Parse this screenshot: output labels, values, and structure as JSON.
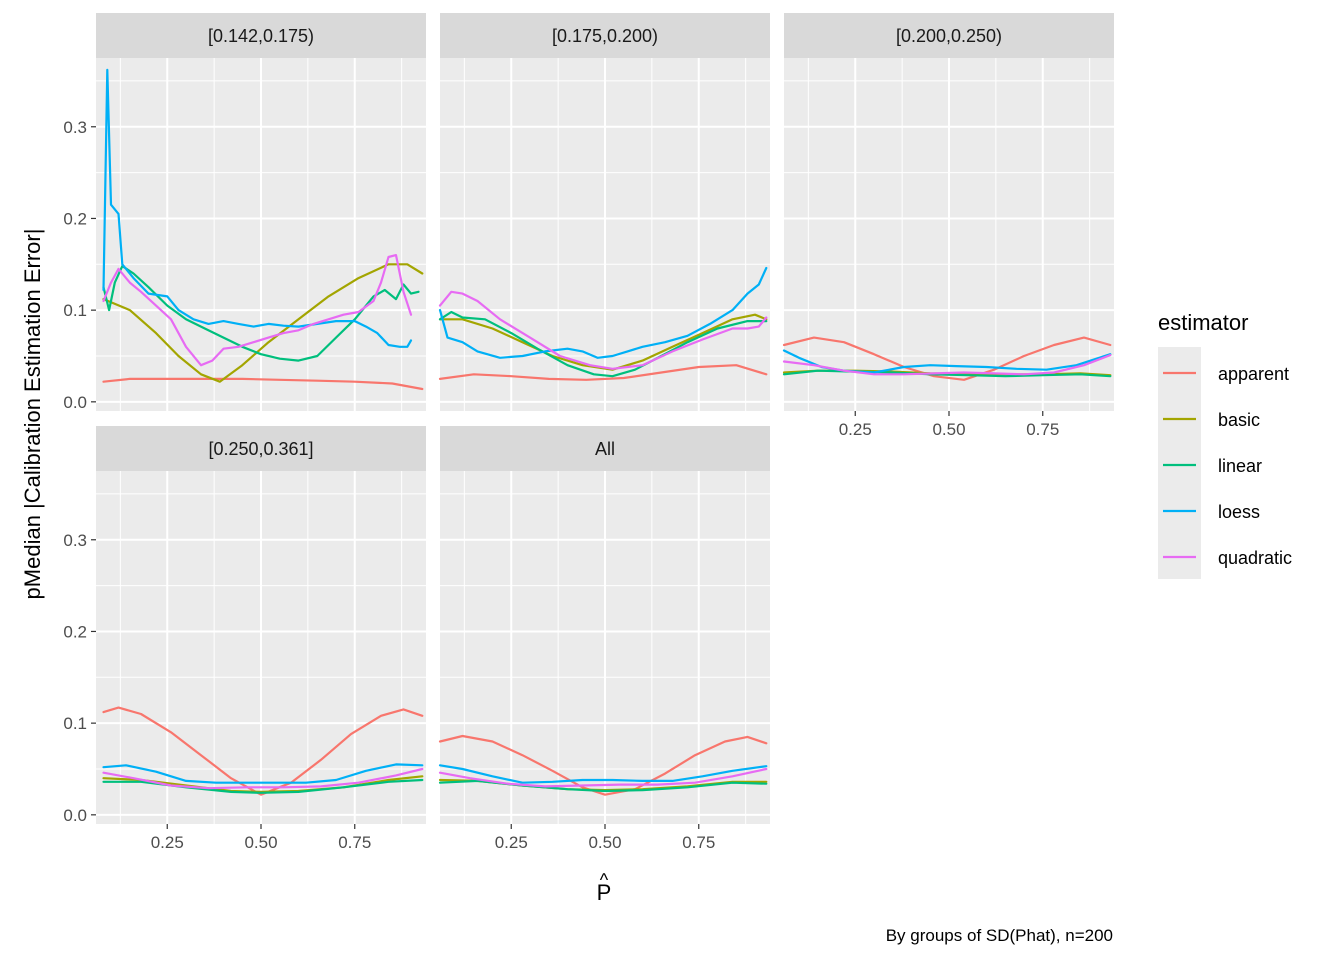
{
  "chart_data": {
    "type": "line",
    "ylabel": "pMedian |Calibration Estimation Error|",
    "xlabel": "P̂",
    "xlabel_base": "P",
    "xlabel_accent": "^",
    "caption": "By groups of SD(Phat), n=200",
    "xlim": [
      0.06,
      0.94
    ],
    "ylim": [
      -0.01,
      0.375
    ],
    "x_ticks": [
      0.25,
      0.5,
      0.75
    ],
    "x_tick_labels": [
      "0.25",
      "0.50",
      "0.75"
    ],
    "y_ticks": [
      0.0,
      0.1,
      0.2,
      0.3
    ],
    "y_tick_labels": [
      "0.0",
      "0.1",
      "0.2",
      "0.3"
    ],
    "grid": true,
    "legend": {
      "title": "estimator",
      "placement": "right",
      "entries": [
        "apparent",
        "basic",
        "linear",
        "loess",
        "quadratic"
      ]
    },
    "colors": {
      "apparent": "#F8766D",
      "basic": "#A3A500",
      "linear": "#00BF7D",
      "loess": "#00B0F6",
      "quadratic": "#E76BF3"
    },
    "panels": [
      {
        "label": "[0.142,0.175)",
        "series": [
          {
            "name": "apparent",
            "x": [
              0.08,
              0.15,
              0.25,
              0.35,
              0.45,
              0.55,
              0.65,
              0.75,
              0.85,
              0.93
            ],
            "y": [
              0.022,
              0.025,
              0.025,
              0.025,
              0.025,
              0.024,
              0.023,
              0.022,
              0.02,
              0.014
            ]
          },
          {
            "name": "basic",
            "x": [
              0.08,
              0.15,
              0.22,
              0.28,
              0.34,
              0.39,
              0.45,
              0.52,
              0.6,
              0.68,
              0.76,
              0.84,
              0.89,
              0.93
            ],
            "y": [
              0.112,
              0.1,
              0.075,
              0.05,
              0.03,
              0.022,
              0.04,
              0.065,
              0.09,
              0.115,
              0.135,
              0.15,
              0.15,
              0.14
            ]
          },
          {
            "name": "linear",
            "x": [
              0.08,
              0.095,
              0.11,
              0.13,
              0.16,
              0.2,
              0.25,
              0.3,
              0.35,
              0.4,
              0.45,
              0.5,
              0.55,
              0.6,
              0.65,
              0.7,
              0.75,
              0.8,
              0.83,
              0.86,
              0.88,
              0.9,
              0.92
            ],
            "y": [
              0.125,
              0.1,
              0.13,
              0.148,
              0.14,
              0.125,
              0.105,
              0.09,
              0.08,
              0.07,
              0.06,
              0.052,
              0.047,
              0.045,
              0.05,
              0.07,
              0.09,
              0.115,
              0.122,
              0.112,
              0.128,
              0.118,
              0.12
            ]
          },
          {
            "name": "loess",
            "x": [
              0.08,
              0.09,
              0.1,
              0.12,
              0.13,
              0.16,
              0.2,
              0.25,
              0.28,
              0.32,
              0.36,
              0.4,
              0.44,
              0.48,
              0.52,
              0.56,
              0.6,
              0.65,
              0.7,
              0.75,
              0.78,
              0.81,
              0.84,
              0.87,
              0.89,
              0.9
            ],
            "y": [
              0.122,
              0.362,
              0.215,
              0.205,
              0.15,
              0.135,
              0.118,
              0.115,
              0.1,
              0.09,
              0.085,
              0.088,
              0.085,
              0.082,
              0.085,
              0.083,
              0.082,
              0.085,
              0.088,
              0.088,
              0.082,
              0.075,
              0.062,
              0.06,
              0.06,
              0.067
            ]
          },
          {
            "name": "quadratic",
            "x": [
              0.08,
              0.1,
              0.12,
              0.15,
              0.18,
              0.22,
              0.26,
              0.3,
              0.34,
              0.37,
              0.4,
              0.44,
              0.48,
              0.52,
              0.56,
              0.6,
              0.64,
              0.68,
              0.72,
              0.76,
              0.8,
              0.82,
              0.84,
              0.86,
              0.88,
              0.9
            ],
            "y": [
              0.11,
              0.13,
              0.145,
              0.13,
              0.12,
              0.105,
              0.09,
              0.06,
              0.04,
              0.045,
              0.058,
              0.06,
              0.065,
              0.07,
              0.075,
              0.078,
              0.085,
              0.09,
              0.095,
              0.098,
              0.11,
              0.13,
              0.158,
              0.16,
              0.12,
              0.095
            ]
          }
        ]
      },
      {
        "label": "[0.175,0.200)",
        "series": [
          {
            "name": "apparent",
            "x": [
              0.06,
              0.15,
              0.25,
              0.35,
              0.45,
              0.55,
              0.65,
              0.75,
              0.85,
              0.93
            ],
            "y": [
              0.025,
              0.03,
              0.028,
              0.025,
              0.024,
              0.026,
              0.032,
              0.038,
              0.04,
              0.03
            ]
          },
          {
            "name": "basic",
            "x": [
              0.06,
              0.12,
              0.2,
              0.28,
              0.36,
              0.44,
              0.52,
              0.6,
              0.68,
              0.76,
              0.84,
              0.9,
              0.93
            ],
            "y": [
              0.09,
              0.09,
              0.08,
              0.065,
              0.05,
              0.04,
              0.035,
              0.045,
              0.06,
              0.075,
              0.09,
              0.095,
              0.09
            ]
          },
          {
            "name": "linear",
            "x": [
              0.06,
              0.09,
              0.12,
              0.18,
              0.25,
              0.32,
              0.4,
              0.47,
              0.52,
              0.58,
              0.65,
              0.72,
              0.8,
              0.88,
              0.93
            ],
            "y": [
              0.09,
              0.098,
              0.092,
              0.09,
              0.075,
              0.058,
              0.04,
              0.03,
              0.028,
              0.035,
              0.05,
              0.065,
              0.08,
              0.088,
              0.088
            ]
          },
          {
            "name": "loess",
            "x": [
              0.06,
              0.08,
              0.12,
              0.16,
              0.22,
              0.28,
              0.34,
              0.4,
              0.44,
              0.48,
              0.52,
              0.56,
              0.6,
              0.66,
              0.72,
              0.78,
              0.84,
              0.88,
              0.91,
              0.93
            ],
            "y": [
              0.1,
              0.07,
              0.065,
              0.055,
              0.048,
              0.05,
              0.055,
              0.058,
              0.055,
              0.048,
              0.05,
              0.055,
              0.06,
              0.065,
              0.072,
              0.085,
              0.1,
              0.118,
              0.128,
              0.146
            ]
          },
          {
            "name": "quadratic",
            "x": [
              0.06,
              0.09,
              0.12,
              0.16,
              0.22,
              0.3,
              0.38,
              0.46,
              0.52,
              0.6,
              0.68,
              0.76,
              0.84,
              0.88,
              0.91,
              0.93
            ],
            "y": [
              0.105,
              0.12,
              0.118,
              0.11,
              0.09,
              0.07,
              0.05,
              0.04,
              0.036,
              0.04,
              0.055,
              0.068,
              0.08,
              0.08,
              0.082,
              0.092
            ]
          }
        ]
      },
      {
        "label": "[0.200,0.250)",
        "series": [
          {
            "name": "apparent",
            "x": [
              0.06,
              0.14,
              0.22,
              0.3,
              0.38,
              0.46,
              0.54,
              0.62,
              0.7,
              0.78,
              0.86,
              0.93
            ],
            "y": [
              0.062,
              0.07,
              0.065,
              0.052,
              0.038,
              0.028,
              0.024,
              0.035,
              0.05,
              0.062,
              0.07,
              0.062
            ]
          },
          {
            "name": "basic",
            "x": [
              0.06,
              0.15,
              0.25,
              0.35,
              0.45,
              0.55,
              0.65,
              0.75,
              0.85,
              0.93
            ],
            "y": [
              0.032,
              0.034,
              0.034,
              0.033,
              0.031,
              0.03,
              0.03,
              0.03,
              0.031,
              0.029
            ]
          },
          {
            "name": "linear",
            "x": [
              0.06,
              0.15,
              0.25,
              0.35,
              0.45,
              0.55,
              0.65,
              0.75,
              0.85,
              0.93
            ],
            "y": [
              0.03,
              0.034,
              0.033,
              0.032,
              0.03,
              0.029,
              0.028,
              0.029,
              0.03,
              0.028
            ]
          },
          {
            "name": "loess",
            "x": [
              0.06,
              0.1,
              0.16,
              0.22,
              0.3,
              0.38,
              0.45,
              0.52,
              0.6,
              0.68,
              0.76,
              0.84,
              0.93
            ],
            "y": [
              0.056,
              0.048,
              0.038,
              0.034,
              0.032,
              0.038,
              0.04,
              0.039,
              0.038,
              0.036,
              0.035,
              0.04,
              0.052
            ]
          },
          {
            "name": "quadratic",
            "x": [
              0.06,
              0.14,
              0.22,
              0.3,
              0.38,
              0.46,
              0.54,
              0.62,
              0.7,
              0.78,
              0.86,
              0.93
            ],
            "y": [
              0.044,
              0.04,
              0.034,
              0.03,
              0.03,
              0.031,
              0.032,
              0.031,
              0.03,
              0.032,
              0.04,
              0.051
            ]
          }
        ]
      },
      {
        "label": "[0.250,0.361]",
        "series": [
          {
            "name": "apparent",
            "x": [
              0.08,
              0.12,
              0.18,
              0.26,
              0.34,
              0.42,
              0.5,
              0.58,
              0.66,
              0.74,
              0.82,
              0.88,
              0.93
            ],
            "y": [
              0.112,
              0.117,
              0.11,
              0.09,
              0.065,
              0.04,
              0.022,
              0.035,
              0.06,
              0.088,
              0.108,
              0.115,
              0.108
            ]
          },
          {
            "name": "basic",
            "x": [
              0.08,
              0.18,
              0.3,
              0.42,
              0.5,
              0.6,
              0.72,
              0.84,
              0.93
            ],
            "y": [
              0.04,
              0.038,
              0.032,
              0.026,
              0.025,
              0.026,
              0.03,
              0.038,
              0.042
            ]
          },
          {
            "name": "linear",
            "x": [
              0.08,
              0.18,
              0.3,
              0.42,
              0.5,
              0.6,
              0.72,
              0.84,
              0.93
            ],
            "y": [
              0.036,
              0.036,
              0.03,
              0.025,
              0.024,
              0.025,
              0.03,
              0.036,
              0.038
            ]
          },
          {
            "name": "loess",
            "x": [
              0.08,
              0.14,
              0.22,
              0.3,
              0.38,
              0.46,
              0.54,
              0.62,
              0.7,
              0.78,
              0.86,
              0.93
            ],
            "y": [
              0.052,
              0.054,
              0.047,
              0.037,
              0.035,
              0.035,
              0.035,
              0.035,
              0.038,
              0.048,
              0.055,
              0.054
            ]
          },
          {
            "name": "quadratic",
            "x": [
              0.08,
              0.16,
              0.26,
              0.36,
              0.46,
              0.56,
              0.66,
              0.76,
              0.86,
              0.93
            ],
            "y": [
              0.046,
              0.04,
              0.032,
              0.029,
              0.03,
              0.03,
              0.031,
              0.035,
              0.043,
              0.05
            ]
          }
        ]
      },
      {
        "label": "All",
        "series": [
          {
            "name": "apparent",
            "x": [
              0.06,
              0.12,
              0.2,
              0.28,
              0.36,
              0.44,
              0.5,
              0.58,
              0.66,
              0.74,
              0.82,
              0.88,
              0.93
            ],
            "y": [
              0.08,
              0.086,
              0.08,
              0.065,
              0.048,
              0.03,
              0.022,
              0.028,
              0.045,
              0.065,
              0.08,
              0.085,
              0.078
            ]
          },
          {
            "name": "basic",
            "x": [
              0.06,
              0.16,
              0.28,
              0.4,
              0.5,
              0.6,
              0.72,
              0.84,
              0.93
            ],
            "y": [
              0.038,
              0.037,
              0.032,
              0.028,
              0.027,
              0.028,
              0.031,
              0.036,
              0.036
            ]
          },
          {
            "name": "linear",
            "x": [
              0.06,
              0.16,
              0.28,
              0.4,
              0.5,
              0.6,
              0.72,
              0.84,
              0.93
            ],
            "y": [
              0.035,
              0.037,
              0.032,
              0.028,
              0.026,
              0.027,
              0.03,
              0.035,
              0.034
            ]
          },
          {
            "name": "loess",
            "x": [
              0.06,
              0.12,
              0.2,
              0.28,
              0.36,
              0.44,
              0.52,
              0.6,
              0.68,
              0.76,
              0.84,
              0.93
            ],
            "y": [
              0.054,
              0.05,
              0.042,
              0.035,
              0.036,
              0.038,
              0.038,
              0.037,
              0.037,
              0.042,
              0.048,
              0.053
            ]
          },
          {
            "name": "quadratic",
            "x": [
              0.06,
              0.14,
              0.24,
              0.34,
              0.44,
              0.54,
              0.64,
              0.74,
              0.84,
              0.93
            ],
            "y": [
              0.046,
              0.04,
              0.034,
              0.031,
              0.032,
              0.033,
              0.033,
              0.035,
              0.042,
              0.05
            ]
          }
        ]
      }
    ]
  }
}
